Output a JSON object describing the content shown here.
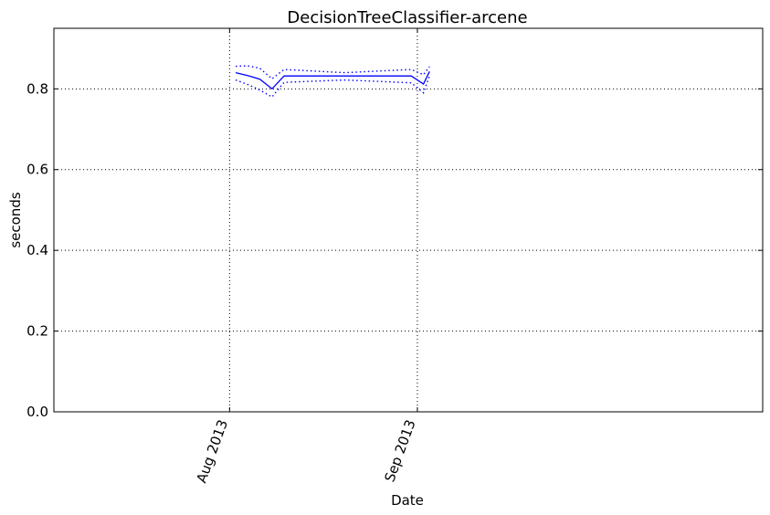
{
  "chart_data": {
    "type": "line",
    "title": "DecisionTreeClassifier-arcene",
    "xlabel": "Date",
    "ylabel": "seconds",
    "x_axis": {
      "type": "date",
      "range": [
        "2013-07-03",
        "2013-10-28"
      ],
      "ticks": [
        {
          "date": "2013-08-01",
          "label": "Aug 2013"
        },
        {
          "date": "2013-09-01",
          "label": "Sep 2013"
        }
      ]
    },
    "y_axis": {
      "range": [
        0.0,
        0.95
      ],
      "ticks": [
        0.0,
        0.2,
        0.4,
        0.6,
        0.8
      ],
      "tick_labels": [
        "0.0",
        "0.2",
        "0.4",
        "0.6",
        "0.8"
      ]
    },
    "grid": true,
    "series": [
      {
        "role": "mean",
        "style": "solid",
        "color": "#0000ff",
        "x": [
          "2013-08-02",
          "2013-08-04",
          "2013-08-06",
          "2013-08-08",
          "2013-08-10",
          "2013-08-20",
          "2013-08-31",
          "2013-09-02",
          "2013-09-03"
        ],
        "y": [
          0.84,
          0.833,
          0.824,
          0.8,
          0.832,
          0.832,
          0.832,
          0.812,
          0.843
        ]
      },
      {
        "role": "upper",
        "style": "dotted",
        "color": "#0000ff",
        "x": [
          "2013-08-02",
          "2013-08-04",
          "2013-08-06",
          "2013-08-08",
          "2013-08-10",
          "2013-08-20",
          "2013-08-31",
          "2013-09-02",
          "2013-09-03"
        ],
        "y": [
          0.856,
          0.857,
          0.851,
          0.825,
          0.848,
          0.84,
          0.848,
          0.835,
          0.855
        ]
      },
      {
        "role": "lower",
        "style": "dotted",
        "color": "#0000ff",
        "x": [
          "2013-08-02",
          "2013-08-04",
          "2013-08-06",
          "2013-08-08",
          "2013-08-10",
          "2013-08-20",
          "2013-08-31",
          "2013-09-02",
          "2013-09-03"
        ],
        "y": [
          0.822,
          0.811,
          0.797,
          0.78,
          0.816,
          0.822,
          0.815,
          0.79,
          0.832
        ]
      }
    ]
  }
}
